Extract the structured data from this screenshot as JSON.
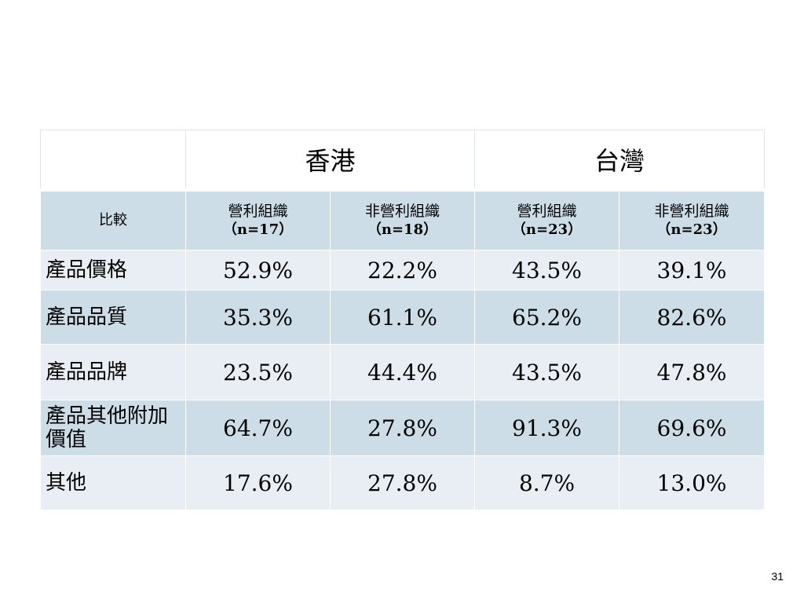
{
  "table": {
    "regions": [
      {
        "name": "香港"
      },
      {
        "name": "台灣"
      }
    ],
    "compare_label": "比較",
    "columns": [
      {
        "label": "營利組織",
        "n": "（n=17）"
      },
      {
        "label": "非營利組織",
        "n": "（n=18）"
      },
      {
        "label": "營利組織",
        "n": "（n=23）"
      },
      {
        "label": "非營利組織",
        "n": "（n=23）"
      }
    ],
    "rows": [
      {
        "label": "產品價格",
        "values": [
          "52.9%",
          "22.2%",
          "43.5%",
          "39.1%"
        ]
      },
      {
        "label": "產品品質",
        "values": [
          "35.3%",
          "61.1%",
          "65.2%",
          "82.6%"
        ]
      },
      {
        "label": "產品品牌",
        "values": [
          "23.5%",
          "44.4%",
          "43.5%",
          "47.8%"
        ]
      },
      {
        "label": "產品其他附加價值",
        "values": [
          "64.7%",
          "27.8%",
          "91.3%",
          "69.6%"
        ]
      },
      {
        "label": "其他",
        "values": [
          "17.6%",
          "27.8%",
          "8.7%",
          "13.0%"
        ]
      }
    ]
  },
  "page_number": "31"
}
